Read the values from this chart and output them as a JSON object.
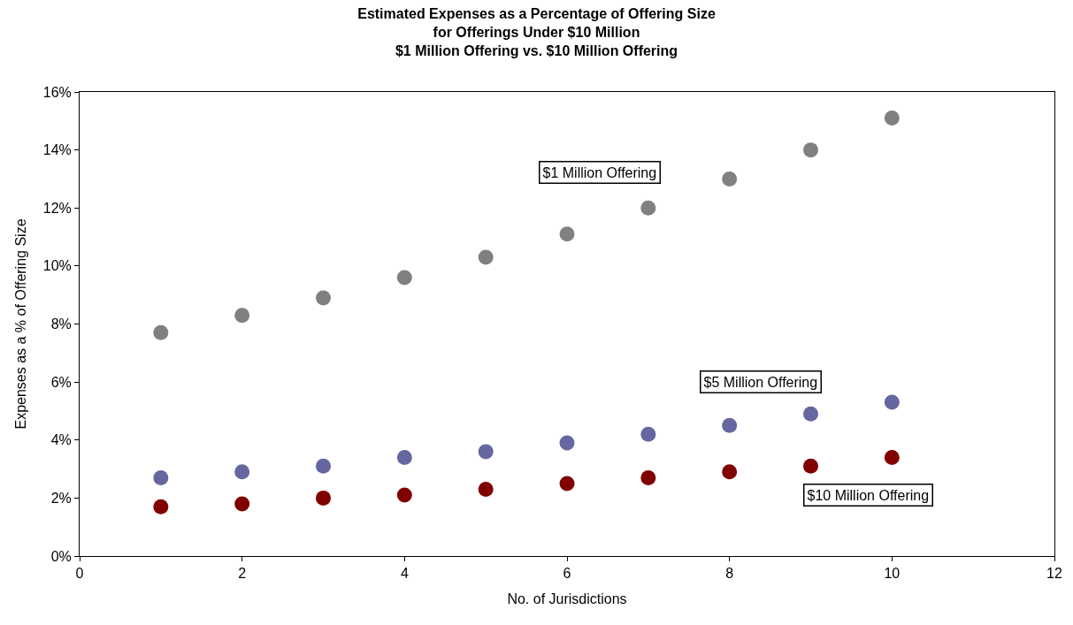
{
  "chart_data": {
    "type": "scatter",
    "title": "Estimated Expenses as a Percentage of Offering Size\nfor Offerings Under $10 Million\n$1 Million Offering vs. $10 Million Offering",
    "xlabel": "No. of Jurisdictions",
    "ylabel": "Expenses as a % of Offering Size",
    "x": [
      1,
      2,
      3,
      4,
      5,
      6,
      7,
      8,
      9,
      10
    ],
    "series": [
      {
        "name": "$1 Million Offering",
        "color": "#808080",
        "values": [
          7.7,
          8.3,
          8.9,
          9.6,
          10.3,
          11.1,
          12.0,
          13.0,
          14.0,
          15.1
        ]
      },
      {
        "name": "$5 Million Offering",
        "color": "#6666a0",
        "values": [
          2.7,
          2.9,
          3.1,
          3.4,
          3.6,
          3.9,
          4.2,
          4.5,
          4.9,
          5.3
        ]
      },
      {
        "name": "$10 Million Offering",
        "color": "#800000",
        "values": [
          1.7,
          1.8,
          2.0,
          2.1,
          2.3,
          2.5,
          2.7,
          2.9,
          3.1,
          3.4
        ]
      }
    ],
    "xlim": [
      0,
      12
    ],
    "xticks": [
      0,
      2,
      4,
      6,
      8,
      10,
      12
    ],
    "ylim": [
      0,
      16
    ],
    "yticks": [
      {
        "value": 0,
        "label": "0%"
      },
      {
        "value": 2,
        "label": "2%"
      },
      {
        "value": 4,
        "label": "4%"
      },
      {
        "value": 6,
        "label": "6%"
      },
      {
        "value": 8,
        "label": "8%"
      },
      {
        "value": 10,
        "label": "10%"
      },
      {
        "value": 12,
        "label": "12%"
      },
      {
        "value": 14,
        "label": "14%"
      },
      {
        "value": 16,
        "label": "16%"
      }
    ],
    "legend": false,
    "marker": "circle"
  }
}
